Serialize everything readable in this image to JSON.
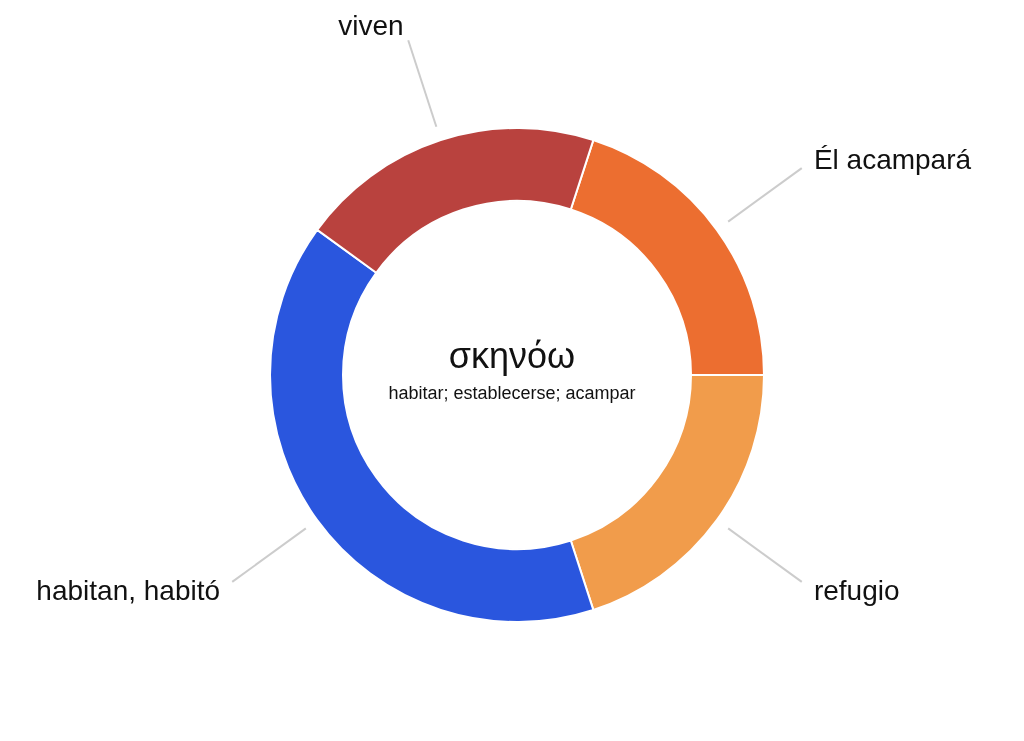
{
  "chart_data": {
    "type": "donut",
    "title": "σκηνόω",
    "subtitle": "habitar; establecerse; acampar",
    "categories": [
      "Él acampará",
      "refugio",
      "habitan, habitó",
      "viven"
    ],
    "values": [
      20,
      20,
      40,
      20
    ],
    "colors": [
      "#ec6e30",
      "#f19c4b",
      "#2a56de",
      "#b9423e"
    ]
  }
}
